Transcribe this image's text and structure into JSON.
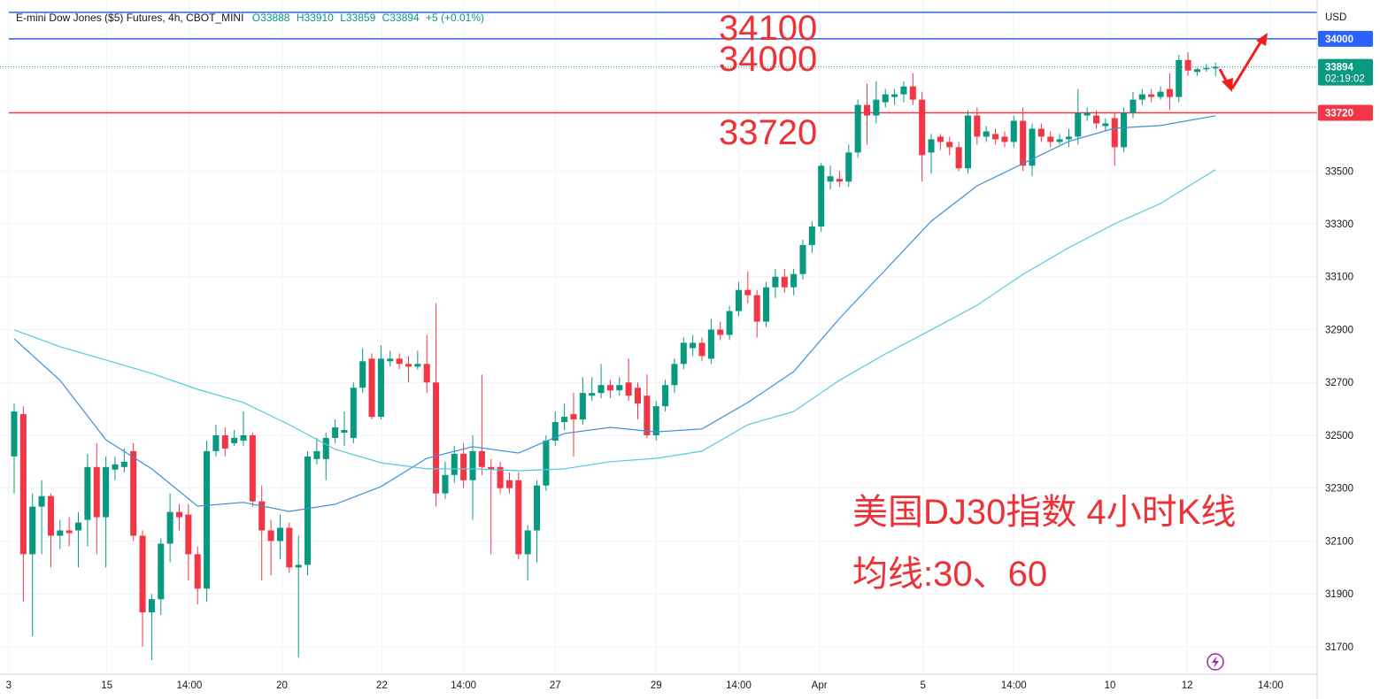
{
  "header": {
    "symbol": "E-mini Dow Jones ($5) Futures, 4h, CBOT_MINI",
    "quote": [
      "O33888",
      "H33910",
      "L33859",
      "C33894",
      "+5 (+0.01%)"
    ]
  },
  "chart_data": {
    "type": "candlestick",
    "x": [
      0,
      1,
      2,
      3,
      4,
      5,
      6,
      7,
      8,
      9,
      10,
      11,
      12,
      13,
      14,
      15,
      16,
      17,
      18,
      19,
      20,
      21,
      22,
      23,
      24,
      25,
      26,
      27,
      28,
      29,
      30,
      31,
      32,
      33,
      34,
      35,
      36,
      37,
      38,
      39,
      40,
      41,
      42,
      43,
      44,
      45,
      46,
      47,
      48,
      49,
      50,
      51,
      52,
      53,
      54,
      55,
      56,
      57,
      58,
      59,
      60,
      61,
      62,
      63,
      64,
      65,
      66,
      67,
      68,
      69,
      70,
      71,
      72,
      73,
      74,
      75,
      76,
      77,
      78,
      79,
      80,
      81,
      82,
      83,
      84,
      85,
      86,
      87,
      88,
      89,
      90,
      91,
      92,
      93,
      94,
      95,
      96,
      97,
      98,
      99,
      100,
      101,
      102,
      103,
      104,
      105,
      106,
      107,
      108,
      109,
      110,
      111,
      112,
      113,
      114,
      115,
      116,
      117,
      118,
      119,
      120,
      121,
      122,
      123,
      124,
      125,
      126,
      127,
      128,
      129,
      130,
      131
    ],
    "open": [
      32420,
      32580,
      32050,
      32230,
      32270,
      32120,
      32140,
      32140,
      32180,
      32380,
      32190,
      32370,
      32380,
      32440,
      32120,
      31830,
      31880,
      32090,
      32210,
      32200,
      32050,
      31920,
      32440,
      32500,
      32470,
      32480,
      32500,
      32250,
      32140,
      32100,
      32150,
      32000,
      32010,
      32410,
      32410,
      32490,
      32510,
      32490,
      32680,
      32790,
      32570,
      32780,
      32790,
      32770,
      32760,
      32770,
      32700,
      32280,
      32350,
      32430,
      32330,
      32440,
      32380,
      32380,
      32330,
      32330,
      32050,
      32140,
      32310,
      32480,
      32550,
      32580,
      32560,
      32650,
      32660,
      32690,
      32670,
      32700,
      32680,
      32650,
      32500,
      32610,
      32690,
      32770,
      32830,
      32850,
      32790,
      32900,
      32880,
      32970,
      33050,
      33030,
      32930,
      33060,
      33100,
      33060,
      33110,
      33220,
      33290,
      33460,
      33470,
      33460,
      33570,
      33750,
      33710,
      33760,
      33780,
      33790,
      33820,
      33770,
      33570,
      33630,
      33610,
      33590,
      33510,
      33710,
      33630,
      33640,
      33630,
      33610,
      33690,
      33520,
      33660,
      33630,
      33610,
      33620,
      33630,
      33710,
      33710,
      33670,
      33700,
      33590,
      33720,
      33770,
      33790,
      33780,
      33810,
      33780,
      33920,
      33875,
      33885,
      33888
    ],
    "high": [
      32620,
      32610,
      32280,
      32330,
      32280,
      32180,
      32190,
      32210,
      32430,
      32470,
      32420,
      32420,
      32450,
      32470,
      32140,
      31900,
      32110,
      32280,
      32240,
      32240,
      32080,
      32480,
      32540,
      32530,
      32520,
      32590,
      32510,
      32310,
      32180,
      32200,
      32170,
      32120,
      32440,
      32490,
      32510,
      32560,
      32590,
      32700,
      32830,
      32810,
      32840,
      32820,
      32810,
      32800,
      32820,
      32880,
      33000,
      32400,
      32460,
      32470,
      32500,
      32730,
      32410,
      32400,
      32360,
      32360,
      32160,
      32330,
      32500,
      32590,
      32620,
      32660,
      32720,
      32720,
      32770,
      32710,
      32720,
      32790,
      32700,
      32730,
      32630,
      32710,
      32790,
      32870,
      32880,
      32870,
      32940,
      32930,
      32990,
      33080,
      33120,
      33050,
      33080,
      33130,
      33130,
      33130,
      33240,
      33310,
      33530,
      33520,
      33500,
      33600,
      33770,
      33830,
      33840,
      33810,
      33810,
      33840,
      33870,
      33800,
      33640,
      33640,
      33630,
      33610,
      33730,
      33740,
      33670,
      33660,
      33650,
      33710,
      33740,
      33680,
      33680,
      33650,
      33640,
      33660,
      33810,
      33740,
      33730,
      33700,
      33720,
      33740,
      33800,
      33810,
      33810,
      33820,
      33870,
      33940,
      33950,
      33890,
      33905,
      33910
    ],
    "low": [
      32280,
      31870,
      31740,
      32050,
      32000,
      32070,
      32080,
      32000,
      32080,
      32050,
      32000,
      32330,
      32360,
      32100,
      31700,
      31650,
      31820,
      32020,
      32140,
      31950,
      31860,
      31870,
      32420,
      32420,
      32460,
      32460,
      32230,
      31950,
      31970,
      32030,
      31980,
      31660,
      31970,
      32390,
      32330,
      32470,
      32460,
      32470,
      32660,
      32560,
      32560,
      32760,
      32750,
      32700,
      32750,
      32660,
      32230,
      32260,
      32320,
      32300,
      32180,
      32350,
      32050,
      32280,
      32280,
      32030,
      31950,
      32020,
      32290,
      32460,
      32520,
      32420,
      32540,
      32630,
      32640,
      32640,
      32650,
      32630,
      32560,
      32490,
      32480,
      32590,
      32660,
      32750,
      32800,
      32780,
      32770,
      32860,
      32860,
      32950,
      33000,
      32870,
      32910,
      33020,
      33040,
      33030,
      33090,
      33190,
      33270,
      33430,
      33440,
      33440,
      33550,
      33600,
      33680,
      33740,
      33750,
      33760,
      33750,
      33460,
      33490,
      33580,
      33560,
      33500,
      33490,
      33600,
      33610,
      33600,
      33590,
      33590,
      33500,
      33480,
      33610,
      33590,
      33600,
      33590,
      33600,
      33690,
      33660,
      33650,
      33520,
      33570,
      33700,
      33750,
      33760,
      33770,
      33730,
      33760,
      33860,
      33860,
      33875,
      33859
    ],
    "close": [
      32590,
      32050,
      32230,
      32270,
      32120,
      32140,
      32130,
      32170,
      32380,
      32190,
      32380,
      32390,
      32400,
      32120,
      31830,
      31880,
      32090,
      32210,
      32190,
      32050,
      31920,
      32440,
      32500,
      32450,
      32490,
      32500,
      32250,
      32140,
      32100,
      32150,
      32000,
      32010,
      32420,
      32440,
      32490,
      32530,
      32520,
      32680,
      32780,
      32570,
      32790,
      32790,
      32770,
      32760,
      32770,
      32700,
      32280,
      32350,
      32430,
      32330,
      32440,
      32380,
      32370,
      32300,
      32300,
      32050,
      32140,
      32310,
      32480,
      32550,
      32570,
      32560,
      32660,
      32660,
      32690,
      32670,
      32690,
      32650,
      32620,
      32500,
      32610,
      32690,
      32770,
      32850,
      32850,
      32800,
      32900,
      32880,
      32970,
      33050,
      33030,
      32930,
      33060,
      33100,
      33060,
      33110,
      33220,
      33290,
      33520,
      33480,
      33460,
      33570,
      33750,
      33710,
      33770,
      33790,
      33790,
      33820,
      33770,
      33560,
      33620,
      33610,
      33590,
      33510,
      33710,
      33630,
      33650,
      33620,
      33610,
      33690,
      33520,
      33660,
      33630,
      33610,
      33620,
      33630,
      33720,
      33720,
      33680,
      33680,
      33590,
      33720,
      33770,
      33790,
      33780,
      33800,
      33780,
      33920,
      33880,
      33885,
      33890,
      33894
    ],
    "up_color": "#089981",
    "down_color": "#f23645",
    "series": [
      {
        "color": "#3d8fd9",
        "x": [
          0,
          5,
          10,
          15,
          20,
          25,
          30,
          35,
          40,
          45,
          50,
          55,
          60,
          65,
          70,
          75,
          80,
          85,
          90,
          95,
          100,
          105,
          110,
          115,
          120,
          125,
          131
        ],
        "values": [
          32865,
          32708,
          32483,
          32373,
          32232,
          32246,
          32212,
          32239,
          32306,
          32413,
          32457,
          32433,
          32507,
          32530,
          32513,
          32524,
          32624,
          32741,
          32942,
          33126,
          33310,
          33444,
          33528,
          33612,
          33662,
          33672,
          33709
        ]
      },
      {
        "color": "#56c9e0",
        "x": [
          0,
          5,
          10,
          15,
          20,
          25,
          30,
          35,
          40,
          45,
          50,
          55,
          60,
          65,
          70,
          75,
          80,
          85,
          90,
          95,
          100,
          105,
          110,
          115,
          120,
          125,
          131
        ],
        "values": [
          32899,
          32835,
          32785,
          32734,
          32674,
          32624,
          32540,
          32447,
          32396,
          32373,
          32373,
          32366,
          32373,
          32400,
          32413,
          32440,
          32540,
          32590,
          32708,
          32808,
          32899,
          32992,
          33109,
          33210,
          33300,
          33377,
          33505
        ]
      }
    ],
    "xlim": [
      -1.544,
      142.08
    ],
    "xticks": [
      {
        "value": -0.6,
        "label": "3"
      },
      {
        "value": 10.1,
        "label": "15"
      },
      {
        "value": 19.1,
        "label": "14:00"
      },
      {
        "value": 29.2,
        "label": "20"
      },
      {
        "value": 40.1,
        "label": "22"
      },
      {
        "value": 49,
        "label": "14:00"
      },
      {
        "value": 59,
        "label": "27"
      },
      {
        "value": 70,
        "label": "29"
      },
      {
        "value": 79,
        "label": "14:00"
      },
      {
        "value": 87.8,
        "label": "Apr"
      },
      {
        "value": 99.1,
        "label": "5"
      },
      {
        "value": 109,
        "label": "14:00"
      },
      {
        "value": 119.5,
        "label": "10"
      },
      {
        "value": 127.9,
        "label": "12"
      },
      {
        "value": 137,
        "label": "14:00"
      }
    ],
    "ylim": [
      31596,
      34147
    ],
    "yticks": [
      31700,
      31900,
      32100,
      32300,
      32500,
      32700,
      32900,
      33100,
      33300,
      33500
    ],
    "grid": true,
    "currency": "USD",
    "hlines": [
      {
        "value": 34100,
        "color": "#2962ff"
      },
      {
        "value": 34000,
        "color": "#2962ff"
      },
      {
        "value": 33720,
        "color": "#f23645"
      }
    ],
    "last_price": {
      "value": 33894,
      "color": "#089981",
      "countdown": "02:19:02"
    },
    "badges": [
      {
        "value": 34000,
        "color": "#2962ff"
      },
      {
        "value": 33720,
        "color": "#f23645"
      }
    ],
    "annotations": [
      "34100",
      "34000",
      "33720"
    ],
    "caption": [
      "美国DJ30指数 4小时K线",
      "均线:30、60"
    ]
  }
}
